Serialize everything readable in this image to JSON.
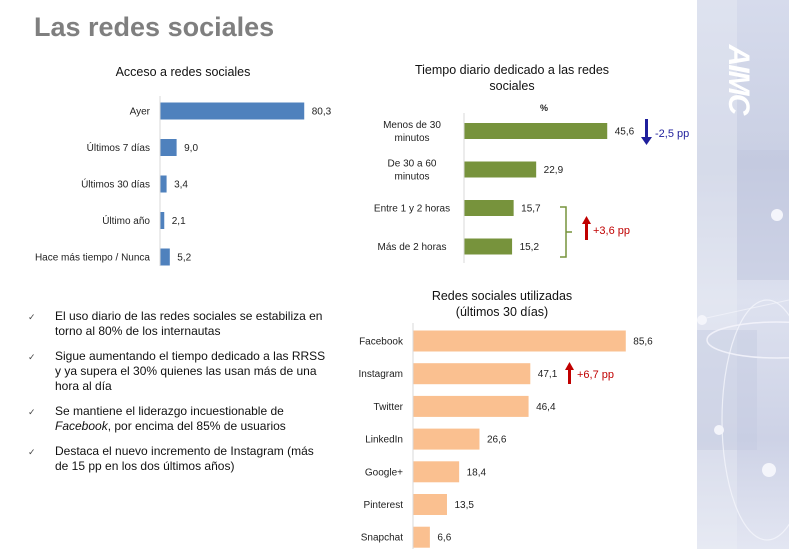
{
  "slide": {
    "title": "Las redes sociales",
    "logo_text": "AIMC"
  },
  "colors": {
    "title": "#7f7f7f",
    "chart1_bar": "#4f81bd",
    "chart2_bar": "#77933c",
    "chart3_bar": "#fac090",
    "decrease": "#1f1f9c",
    "increase": "#c00000",
    "bracket": "#77933c"
  },
  "chart_data": [
    {
      "type": "bar",
      "orientation": "horizontal",
      "title": "Acceso a redes sociales",
      "categories": [
        "Ayer",
        "Últimos 7 días",
        "Últimos 30 días",
        "Último año",
        "Hace más tiempo / Nunca"
      ],
      "values": [
        80.3,
        9.0,
        3.4,
        2.1,
        5.2
      ],
      "value_labels": [
        "80,3",
        "9,0",
        "3,4",
        "2,1",
        "5,2"
      ],
      "xlabel": "",
      "ylabel": "",
      "xlim": [
        0,
        100
      ]
    },
    {
      "type": "bar",
      "orientation": "horizontal",
      "title": "Tiempo diario dedicado a las redes sociales",
      "unit_label": "%",
      "categories": [
        "Menos de 30 minutos",
        "De 30 a 60 minutos",
        "Entre 1 y 2 horas",
        "Más de 2 horas"
      ],
      "category_lines": [
        [
          "Menos de 30",
          "minutos"
        ],
        [
          "De 30 a 60",
          "minutos"
        ],
        [
          "Entre 1 y 2 horas"
        ],
        [
          "Más de 2 horas"
        ]
      ],
      "values": [
        45.6,
        22.9,
        15.7,
        15.2
      ],
      "value_labels": [
        "45,6",
        "22,9",
        "15,7",
        "15,2"
      ],
      "xlim": [
        0,
        50
      ],
      "annotations": [
        {
          "text": "-2,5 pp",
          "direction": "down",
          "applies_to": [
            "Menos de 30 minutos"
          ]
        },
        {
          "text": "+3,6 pp",
          "direction": "up",
          "applies_to": [
            "Entre 1 y 2 horas",
            "Más de 2 horas"
          ]
        }
      ]
    },
    {
      "type": "bar",
      "orientation": "horizontal",
      "title": "Redes sociales utilizadas (últimos 30 días)",
      "title_lines": [
        "Redes sociales utilizadas",
        "(últimos 30 días)"
      ],
      "categories": [
        "Facebook",
        "Instagram",
        "Twitter",
        "LinkedIn",
        "Google+",
        "Pinterest",
        "Snapchat"
      ],
      "values": [
        85.6,
        47.1,
        46.4,
        26.6,
        18.4,
        13.5,
        6.6
      ],
      "value_labels": [
        "85,6",
        "47,1",
        "46,4",
        "26,6",
        "18,4",
        "13,5",
        "6,6"
      ],
      "xlim": [
        0,
        100
      ],
      "annotations": [
        {
          "text": "+6,7 pp",
          "direction": "up",
          "applies_to": [
            "Instagram"
          ]
        }
      ]
    }
  ],
  "bullets": [
    {
      "text": "El uso diario de las redes sociales se estabiliza en torno al 80% de los internautas"
    },
    {
      "text": "Sigue aumentando el tiempo dedicado a las RRSS y ya supera el 30% quienes las usan más de una hora al día"
    },
    {
      "text_before": "Se mantiene el liderazgo incuestionable de ",
      "emphasis": "Facebook",
      "text_after": ", por encima del 85% de usuarios"
    },
    {
      "text": "Destaca el nuevo incremento de Instagram (más de 15 pp en los dos últimos años)"
    }
  ],
  "bullet_icon": "✓"
}
